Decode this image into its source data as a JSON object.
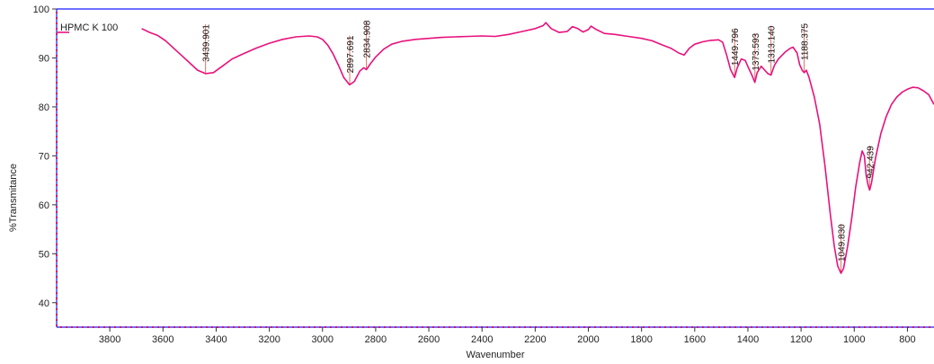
{
  "chart_data": {
    "type": "line",
    "title": "",
    "xlabel": "Wavenumber",
    "ylabel": "%Transmitance",
    "xlim": [
      4000,
      700
    ],
    "ylim": [
      35,
      100
    ],
    "x_reversed": true,
    "x_ticks": [
      3800,
      3600,
      3400,
      3200,
      3000,
      2800,
      2600,
      2400,
      2200,
      2000,
      1800,
      1600,
      1400,
      1200,
      1000,
      800
    ],
    "y_ticks": [
      40,
      50,
      60,
      70,
      80,
      90,
      100
    ],
    "grid": false,
    "legend": {
      "label": "HPMC K 100",
      "placement": "top-left"
    },
    "colors": {
      "line": "#e8127c",
      "frame": "#1a1aff",
      "peak_marker": "#e07060",
      "axis_dots": "#e0115f"
    },
    "series": [
      {
        "name": "HPMC K 100",
        "points": [
          [
            3680,
            96.0
          ],
          [
            3650,
            95.2
          ],
          [
            3620,
            94.6
          ],
          [
            3590,
            93.5
          ],
          [
            3560,
            92.0
          ],
          [
            3530,
            90.5
          ],
          [
            3500,
            89.0
          ],
          [
            3470,
            87.5
          ],
          [
            3440,
            86.8
          ],
          [
            3410,
            87.0
          ],
          [
            3380,
            88.2
          ],
          [
            3340,
            89.8
          ],
          [
            3300,
            90.8
          ],
          [
            3250,
            92.0
          ],
          [
            3200,
            93.0
          ],
          [
            3150,
            93.8
          ],
          [
            3100,
            94.3
          ],
          [
            3050,
            94.5
          ],
          [
            3020,
            94.3
          ],
          [
            3000,
            93.8
          ],
          [
            2980,
            92.6
          ],
          [
            2960,
            90.8
          ],
          [
            2940,
            88.5
          ],
          [
            2920,
            86.0
          ],
          [
            2898,
            84.5
          ],
          [
            2880,
            85.2
          ],
          [
            2860,
            87.3
          ],
          [
            2845,
            88.0
          ],
          [
            2835,
            87.6
          ],
          [
            2820,
            88.8
          ],
          [
            2800,
            90.2
          ],
          [
            2770,
            91.8
          ],
          [
            2740,
            92.8
          ],
          [
            2700,
            93.4
          ],
          [
            2650,
            93.8
          ],
          [
            2600,
            94.0
          ],
          [
            2550,
            94.2
          ],
          [
            2500,
            94.3
          ],
          [
            2450,
            94.4
          ],
          [
            2400,
            94.5
          ],
          [
            2350,
            94.4
          ],
          [
            2300,
            94.8
          ],
          [
            2250,
            95.4
          ],
          [
            2200,
            96.0
          ],
          [
            2170,
            96.6
          ],
          [
            2160,
            97.2
          ],
          [
            2140,
            96.0
          ],
          [
            2110,
            95.2
          ],
          [
            2080,
            95.4
          ],
          [
            2060,
            96.4
          ],
          [
            2040,
            96.0
          ],
          [
            2020,
            95.3
          ],
          [
            2000,
            95.8
          ],
          [
            1990,
            96.5
          ],
          [
            1970,
            95.8
          ],
          [
            1940,
            95.0
          ],
          [
            1900,
            94.8
          ],
          [
            1850,
            94.4
          ],
          [
            1800,
            94.0
          ],
          [
            1760,
            93.5
          ],
          [
            1720,
            92.6
          ],
          [
            1690,
            92.0
          ],
          [
            1660,
            91.0
          ],
          [
            1640,
            90.6
          ],
          [
            1620,
            92.0
          ],
          [
            1600,
            92.8
          ],
          [
            1570,
            93.3
          ],
          [
            1540,
            93.6
          ],
          [
            1510,
            93.7
          ],
          [
            1495,
            93.2
          ],
          [
            1480,
            90.6
          ],
          [
            1465,
            87.6
          ],
          [
            1450,
            86.0
          ],
          [
            1440,
            88.0
          ],
          [
            1425,
            89.8
          ],
          [
            1410,
            89.5
          ],
          [
            1398,
            88.0
          ],
          [
            1385,
            86.5
          ],
          [
            1374,
            85.0
          ],
          [
            1365,
            87.0
          ],
          [
            1350,
            88.3
          ],
          [
            1335,
            87.4
          ],
          [
            1325,
            86.8
          ],
          [
            1313,
            86.5
          ],
          [
            1300,
            88.5
          ],
          [
            1285,
            89.8
          ],
          [
            1260,
            91.2
          ],
          [
            1240,
            92.0
          ],
          [
            1230,
            92.2
          ],
          [
            1215,
            91.0
          ],
          [
            1205,
            88.6
          ],
          [
            1195,
            87.4
          ],
          [
            1188,
            87.0
          ],
          [
            1180,
            87.5
          ],
          [
            1170,
            86.0
          ],
          [
            1150,
            82.0
          ],
          [
            1130,
            76.5
          ],
          [
            1110,
            68.0
          ],
          [
            1090,
            58.0
          ],
          [
            1075,
            51.5
          ],
          [
            1062,
            47.5
          ],
          [
            1050,
            46.0
          ],
          [
            1040,
            47.0
          ],
          [
            1025,
            51.5
          ],
          [
            1010,
            57.0
          ],
          [
            995,
            63.5
          ],
          [
            980,
            68.5
          ],
          [
            970,
            71.0
          ],
          [
            962,
            70.0
          ],
          [
            955,
            66.0
          ],
          [
            948,
            64.0
          ],
          [
            942,
            63.0
          ],
          [
            935,
            64.5
          ],
          [
            920,
            69.5
          ],
          [
            900,
            74.5
          ],
          [
            880,
            78.0
          ],
          [
            860,
            80.5
          ],
          [
            840,
            82.0
          ],
          [
            820,
            83.0
          ],
          [
            800,
            83.6
          ],
          [
            780,
            84.0
          ],
          [
            760,
            83.9
          ],
          [
            740,
            83.3
          ],
          [
            720,
            82.5
          ],
          [
            705,
            81.0
          ],
          [
            700,
            80.5
          ]
        ]
      }
    ],
    "annotations": [
      {
        "label": "3439.901",
        "x": 3439.901,
        "y": 86.8
      },
      {
        "label": "2897.691",
        "x": 2897.691,
        "y": 84.5
      },
      {
        "label": "2834.908",
        "x": 2834.908,
        "y": 87.6
      },
      {
        "label": "1449.796",
        "x": 1449.796,
        "y": 86.0
      },
      {
        "label": "1373.593",
        "x": 1373.593,
        "y": 85.0
      },
      {
        "label": "1313.140",
        "x": 1313.14,
        "y": 86.5
      },
      {
        "label": "1188.375",
        "x": 1188.375,
        "y": 87.0
      },
      {
        "label": "1049.830",
        "x": 1049.83,
        "y": 46.0
      },
      {
        "label": "942.439",
        "x": 942.439,
        "y": 63.0
      }
    ]
  }
}
